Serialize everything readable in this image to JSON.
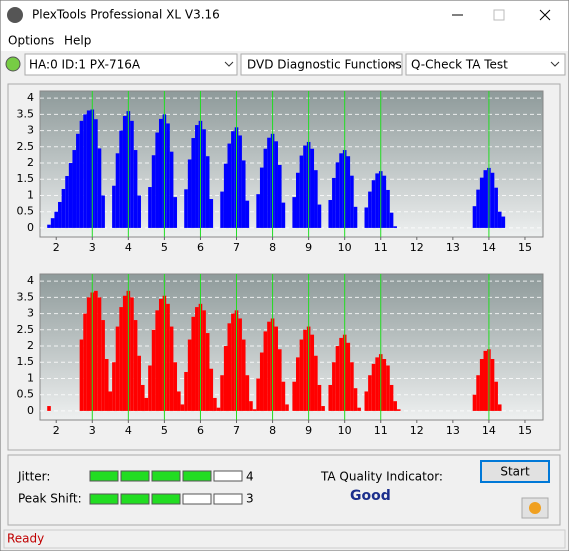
{
  "window": {
    "title": "PlexTools Professional XL V3.16"
  },
  "menu": [
    "Options",
    "Help"
  ],
  "toolbar": {
    "drive": "HA:0 ID:1  PX-716A",
    "function": "DVD Diagnostic Functions",
    "test": "Q-Check TA Test"
  },
  "chart_data": [
    {
      "type": "bar",
      "color": "#0000ff",
      "xlim": [
        1.55,
        15.5
      ],
      "ylim": [
        -0.28,
        4.22
      ],
      "xticks": [
        2,
        3,
        4,
        5,
        6,
        7,
        8,
        9,
        10,
        11,
        12,
        13,
        14,
        15
      ],
      "yticks": [
        0,
        0.5,
        1,
        1.5,
        2,
        2.5,
        3,
        3.5,
        4
      ],
      "grid": true,
      "markers": [
        3,
        4,
        5,
        6,
        7,
        8,
        9,
        10,
        11,
        14
      ],
      "marker_color": "#22dd22",
      "x": [
        1.8,
        1.9,
        2,
        2.1,
        2.2,
        2.3,
        2.4,
        2.5,
        2.6,
        2.7,
        2.8,
        2.9,
        3,
        3.1,
        3.2,
        3.3,
        3.4,
        3.5,
        3.6,
        3.7,
        3.8,
        3.9,
        4,
        4.1,
        4.2,
        4.3,
        4.4,
        4.5,
        4.6,
        4.7,
        4.8,
        4.9,
        5,
        5.1,
        5.2,
        5.3,
        5.4,
        5.5,
        5.6,
        5.7,
        5.8,
        5.9,
        6,
        6.1,
        6.2,
        6.3,
        6.4,
        6.5,
        6.6,
        6.7,
        6.8,
        6.9,
        7,
        7.1,
        7.2,
        7.3,
        7.4,
        7.5,
        7.6,
        7.7,
        7.8,
        7.9,
        8,
        8.1,
        8.2,
        8.3,
        8.4,
        8.5,
        8.6,
        8.7,
        8.8,
        8.9,
        9,
        9.1,
        9.2,
        9.3,
        9.4,
        9.5,
        9.6,
        9.7,
        9.8,
        9.9,
        10,
        10.1,
        10.2,
        10.3,
        10.4,
        10.5,
        10.6,
        10.7,
        10.8,
        10.9,
        11,
        11.1,
        11.2,
        11.3,
        11.4,
        11.5,
        11.6,
        11.7,
        11.8,
        11.9,
        12,
        12.1,
        12.2,
        12.3,
        12.4,
        12.5,
        12.6,
        12.7,
        12.8,
        12.9,
        13,
        13.1,
        13.2,
        13.3,
        13.4,
        13.5,
        13.6,
        13.7,
        13.8,
        13.9,
        14,
        14.1,
        14.2,
        14.3,
        14.4,
        14.5
      ],
      "values": [
        0.1,
        0.3,
        0.5,
        0.8,
        1.2,
        1.6,
        2.0,
        2.4,
        2.9,
        3.3,
        3.5,
        3.62,
        3.65,
        3.35,
        2.45,
        1.0,
        0,
        0,
        1.3,
        2.3,
        3.0,
        3.45,
        3.6,
        3.3,
        2.4,
        1.0,
        0,
        0,
        1.26,
        2.24,
        2.94,
        3.36,
        3.5,
        3.22,
        2.35,
        0.95,
        0,
        0,
        1.19,
        2.11,
        2.77,
        3.17,
        3.3,
        3.04,
        2.21,
        0.89,
        0,
        0,
        1.12,
        1.98,
        2.6,
        2.98,
        3.1,
        2.85,
        2.08,
        0.84,
        0,
        0,
        1.04,
        1.86,
        2.44,
        2.78,
        2.9,
        2.67,
        1.94,
        0.78,
        0,
        0,
        0.95,
        1.7,
        2.23,
        2.54,
        2.65,
        2.44,
        1.78,
        0.72,
        0,
        0,
        0.86,
        1.54,
        2.02,
        2.3,
        2.4,
        2.21,
        1.61,
        0.65,
        0,
        0,
        0.63,
        1.12,
        1.47,
        1.68,
        1.75,
        1.61,
        1.17,
        0.47,
        0.05,
        0,
        0,
        0,
        0,
        0,
        0,
        0,
        0,
        0,
        0,
        0,
        0,
        0,
        0,
        0,
        0,
        0,
        0,
        0,
        0,
        0,
        0.67,
        1.18,
        1.55,
        1.78,
        1.85,
        1.7,
        1.24,
        0.5,
        0.35,
        0
      ]
    },
    {
      "type": "bar",
      "color": "#ff0000",
      "xlim": [
        1.55,
        15.5
      ],
      "ylim": [
        -0.28,
        4.22
      ],
      "xticks": [
        2,
        3,
        4,
        5,
        6,
        7,
        8,
        9,
        10,
        11,
        12,
        13,
        14,
        15
      ],
      "yticks": [
        0,
        0.5,
        1,
        1.5,
        2,
        2.5,
        3,
        3.5,
        4
      ],
      "grid": true,
      "markers": [
        3,
        4,
        5,
        6,
        7,
        8,
        9,
        10,
        11,
        14
      ],
      "marker_color": "#22dd22",
      "x": [
        1.8,
        1.9,
        2,
        2.1,
        2.2,
        2.3,
        2.4,
        2.5,
        2.6,
        2.7,
        2.8,
        2.9,
        3,
        3.1,
        3.2,
        3.3,
        3.4,
        3.5,
        3.6,
        3.7,
        3.8,
        3.9,
        4,
        4.1,
        4.2,
        4.3,
        4.4,
        4.5,
        4.6,
        4.7,
        4.8,
        4.9,
        5,
        5.1,
        5.2,
        5.3,
        5.4,
        5.5,
        5.6,
        5.7,
        5.8,
        5.9,
        6,
        6.1,
        6.2,
        6.3,
        6.4,
        6.5,
        6.6,
        6.7,
        6.8,
        6.9,
        7,
        7.1,
        7.2,
        7.3,
        7.4,
        7.5,
        7.6,
        7.7,
        7.8,
        7.9,
        8,
        8.1,
        8.2,
        8.3,
        8.4,
        8.5,
        8.6,
        8.7,
        8.8,
        8.9,
        9,
        9.1,
        9.2,
        9.3,
        9.4,
        9.5,
        9.6,
        9.7,
        9.8,
        9.9,
        10,
        10.1,
        10.2,
        10.3,
        10.4,
        10.5,
        10.6,
        10.7,
        10.8,
        10.9,
        11,
        11.1,
        11.2,
        11.3,
        11.4,
        11.5,
        11.6,
        11.7,
        11.8,
        11.9,
        12,
        12.1,
        12.2,
        12.3,
        12.4,
        12.5,
        12.6,
        12.7,
        12.8,
        12.9,
        13,
        13.1,
        13.2,
        13.3,
        13.4,
        13.5,
        13.6,
        13.7,
        13.8,
        13.9,
        14,
        14.1,
        14.2,
        14.3,
        14.4,
        14.5
      ],
      "values": [
        0.15,
        0,
        0,
        0,
        0,
        0,
        0,
        0,
        0,
        2.2,
        3.0,
        3.5,
        3.65,
        3.7,
        3.5,
        2.8,
        1.6,
        0.6,
        1.5,
        2.6,
        3.2,
        3.55,
        3.7,
        3.5,
        2.8,
        1.7,
        0.8,
        0.4,
        1.4,
        2.5,
        3.1,
        3.45,
        3.55,
        3.3,
        2.6,
        1.5,
        0.6,
        0.2,
        1.2,
        2.2,
        2.9,
        3.2,
        3.3,
        3.1,
        2.4,
        1.3,
        0.4,
        0.1,
        1.1,
        2.0,
        2.7,
        3.0,
        3.1,
        2.85,
        2.2,
        1.1,
        0.3,
        0.05,
        1.0,
        1.8,
        2.45,
        2.75,
        2.85,
        2.6,
        1.9,
        0.9,
        0.2,
        0,
        0.9,
        1.65,
        2.2,
        2.5,
        2.6,
        2.35,
        1.7,
        0.8,
        0.15,
        0,
        0.8,
        1.5,
        2.0,
        2.25,
        2.35,
        2.1,
        1.5,
        0.7,
        0.1,
        0,
        0.6,
        1.1,
        1.45,
        1.65,
        1.75,
        1.6,
        1.4,
        0.8,
        0.3,
        0.05,
        0,
        0,
        0,
        0,
        0,
        0,
        0,
        0,
        0,
        0,
        0,
        0,
        0,
        0,
        0,
        0,
        0,
        0,
        0,
        0,
        0.5,
        1.1,
        1.6,
        1.85,
        1.9,
        1.6,
        0.9,
        0.2,
        0,
        0
      ]
    }
  ],
  "indicators": [
    {
      "label": "Jitter:",
      "value": 4,
      "segments": 5
    },
    {
      "label": "Peak Shift:",
      "value": 3,
      "segments": 5
    }
  ],
  "quality": {
    "label": "TA Quality Indicator:",
    "value": "Good"
  },
  "start_button": "Start",
  "status": "Ready"
}
